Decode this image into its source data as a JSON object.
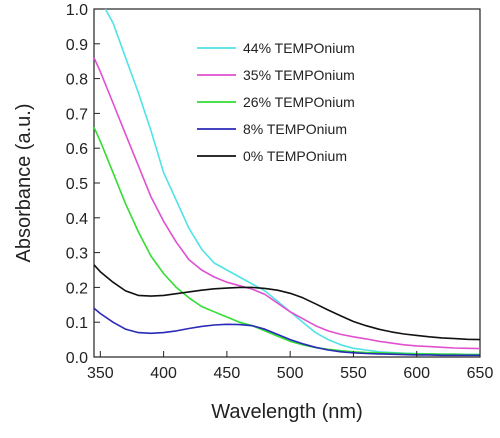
{
  "chart_data": {
    "type": "line",
    "xlabel": "Wavelength (nm)",
    "ylabel": "Absorbance (a.u.)",
    "xlim": [
      345,
      650
    ],
    "ylim": [
      0,
      1.0
    ],
    "xticks": [
      350,
      400,
      450,
      500,
      550,
      600,
      650
    ],
    "yticks": [
      0.0,
      0.1,
      0.2,
      0.3,
      0.4,
      0.5,
      0.6,
      0.7,
      0.8,
      0.9,
      1.0
    ],
    "legend_position": "top-right",
    "grid": false,
    "series": [
      {
        "name": "44% TEMPOnium",
        "color": "#4fe3e8",
        "x": [
          354,
          360,
          370,
          380,
          390,
          400,
          410,
          420,
          430,
          440,
          450,
          460,
          470,
          480,
          490,
          500,
          510,
          520,
          530,
          540,
          550,
          560,
          570,
          580,
          590,
          600,
          610,
          620,
          630,
          640,
          650
        ],
        "y": [
          1.0,
          0.96,
          0.86,
          0.76,
          0.65,
          0.53,
          0.45,
          0.37,
          0.31,
          0.27,
          0.25,
          0.23,
          0.21,
          0.19,
          0.16,
          0.13,
          0.1,
          0.07,
          0.05,
          0.035,
          0.025,
          0.02,
          0.015,
          0.013,
          0.011,
          0.01,
          0.009,
          0.008,
          0.008,
          0.007,
          0.007
        ]
      },
      {
        "name": "35% TEMPOnium",
        "color": "#e050d0",
        "x": [
          345,
          350,
          360,
          370,
          380,
          390,
          400,
          410,
          420,
          430,
          440,
          450,
          460,
          470,
          480,
          490,
          500,
          510,
          520,
          530,
          540,
          550,
          560,
          570,
          580,
          590,
          600,
          610,
          620,
          630,
          640,
          650
        ],
        "y": [
          0.86,
          0.82,
          0.73,
          0.64,
          0.55,
          0.46,
          0.39,
          0.33,
          0.28,
          0.25,
          0.23,
          0.215,
          0.205,
          0.195,
          0.18,
          0.155,
          0.13,
          0.11,
          0.09,
          0.075,
          0.065,
          0.058,
          0.052,
          0.045,
          0.04,
          0.035,
          0.032,
          0.03,
          0.028,
          0.026,
          0.025,
          0.024
        ]
      },
      {
        "name": "26% TEMPOnium",
        "color": "#33dd33",
        "x": [
          345,
          350,
          360,
          370,
          380,
          390,
          400,
          410,
          420,
          430,
          440,
          450,
          460,
          470,
          480,
          490,
          500,
          510,
          520,
          530,
          540,
          550,
          560,
          570,
          580,
          590,
          600,
          610,
          620,
          630,
          640,
          650
        ],
        "y": [
          0.66,
          0.62,
          0.53,
          0.44,
          0.36,
          0.29,
          0.24,
          0.2,
          0.17,
          0.145,
          0.13,
          0.115,
          0.1,
          0.09,
          0.075,
          0.06,
          0.045,
          0.035,
          0.027,
          0.022,
          0.018,
          0.015,
          0.013,
          0.012,
          0.011,
          0.01,
          0.009,
          0.009,
          0.008,
          0.008,
          0.007,
          0.007
        ]
      },
      {
        "name": "8% TEMPOnium",
        "color": "#2a2ab8",
        "x": [
          345,
          350,
          360,
          370,
          380,
          390,
          400,
          410,
          420,
          430,
          440,
          450,
          460,
          470,
          480,
          490,
          500,
          510,
          520,
          530,
          540,
          550,
          560,
          570,
          580,
          590,
          600,
          610,
          620,
          630,
          640,
          650
        ],
        "y": [
          0.14,
          0.125,
          0.1,
          0.08,
          0.07,
          0.068,
          0.07,
          0.075,
          0.082,
          0.088,
          0.092,
          0.094,
          0.093,
          0.09,
          0.08,
          0.065,
          0.05,
          0.038,
          0.028,
          0.02,
          0.015,
          0.012,
          0.01,
          0.009,
          0.008,
          0.007,
          0.006,
          0.006,
          0.005,
          0.005,
          0.005,
          0.005
        ]
      },
      {
        "name": "0% TEMPOnium",
        "color": "#111111",
        "x": [
          345,
          350,
          360,
          370,
          380,
          390,
          400,
          410,
          420,
          430,
          440,
          450,
          460,
          470,
          480,
          490,
          500,
          510,
          520,
          530,
          540,
          550,
          560,
          570,
          580,
          590,
          600,
          610,
          620,
          630,
          640,
          650
        ],
        "y": [
          0.265,
          0.245,
          0.215,
          0.19,
          0.177,
          0.175,
          0.177,
          0.182,
          0.187,
          0.192,
          0.196,
          0.198,
          0.2,
          0.2,
          0.197,
          0.192,
          0.183,
          0.17,
          0.153,
          0.135,
          0.118,
          0.102,
          0.09,
          0.08,
          0.072,
          0.066,
          0.062,
          0.058,
          0.055,
          0.053,
          0.051,
          0.05
        ]
      }
    ]
  }
}
